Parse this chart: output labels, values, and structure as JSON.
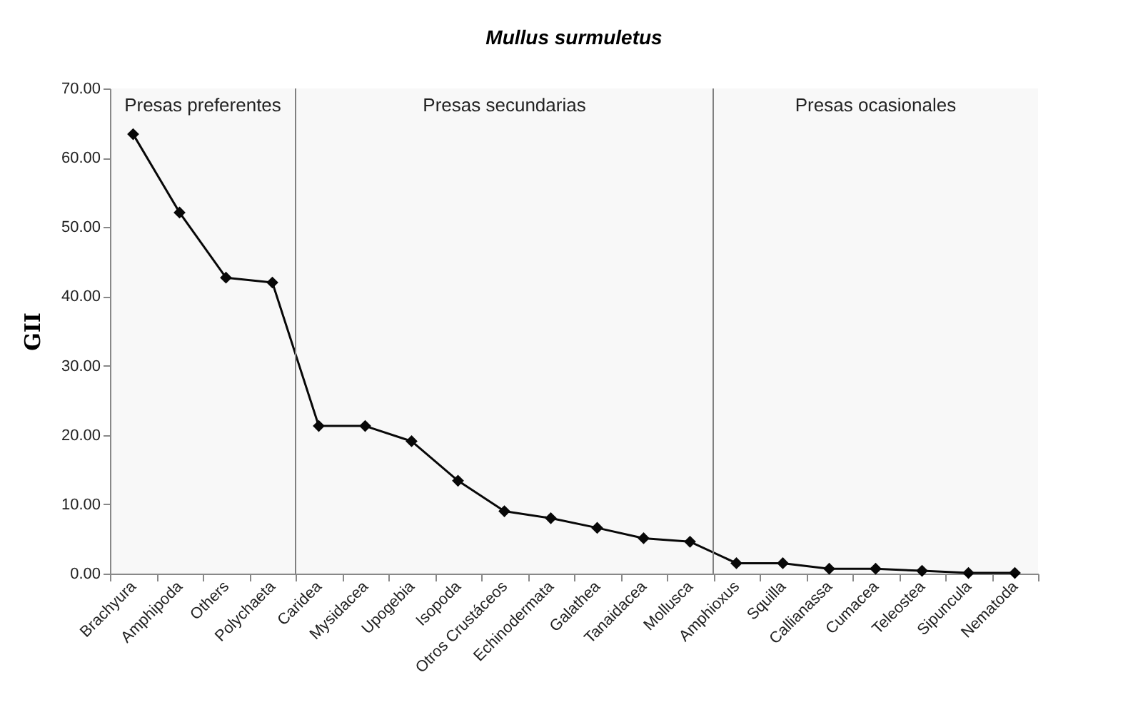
{
  "chart_data": {
    "type": "line",
    "title": "Mullus surmuletus",
    "ylabel": "GII",
    "categories": [
      "Brachyura",
      "Amphipoda",
      "Others",
      "Polychaeta",
      "Caridea",
      "Mysidacea",
      "Upogebia",
      "Isopoda",
      "Otros Crustáceos",
      "Echinodermata",
      "Galathea",
      "Tanaidacea",
      "Mollusca",
      "Amphioxus",
      "Squilla",
      "Callianassa",
      "Cumacea",
      "Teleostea",
      "Sipuncula",
      "Nematoda"
    ],
    "series": [
      {
        "color": "#000000",
        "values": [
          63.4,
          52.1,
          42.7,
          42.0,
          21.3,
          21.3,
          19.1,
          13.4,
          9.0,
          8.0,
          6.6,
          5.1,
          4.6,
          1.5,
          1.5,
          0.7,
          0.7,
          0.4,
          0.1,
          0.1
        ]
      }
    ],
    "ylim": [
      0,
      70
    ],
    "yticks": [
      {
        "value": 0,
        "label": "0.00"
      },
      {
        "value": 10,
        "label": "10.00"
      },
      {
        "value": 20,
        "label": "20.00"
      },
      {
        "value": 30,
        "label": "30.00"
      },
      {
        "value": 40,
        "label": "40.00"
      },
      {
        "value": 50,
        "label": "50.00"
      },
      {
        "value": 60,
        "label": "60.00"
      },
      {
        "value": 70,
        "label": "70.00"
      }
    ],
    "bands": [
      {
        "axis": "x",
        "from": "Brachyura",
        "to": "Polychaeta",
        "label": "Presas preferentes",
        "color": "#808080"
      },
      {
        "axis": "x",
        "from": "Caridea",
        "to": "Mollusca",
        "label": "Presas secundarias",
        "color": "#808080"
      },
      {
        "axis": "x",
        "from": "Amphioxus",
        "to": "Nematoda",
        "label": "Presas ocasionales",
        "color": "#808080"
      }
    ],
    "grid": false,
    "marker": "diamond",
    "line_style": "solid"
  }
}
